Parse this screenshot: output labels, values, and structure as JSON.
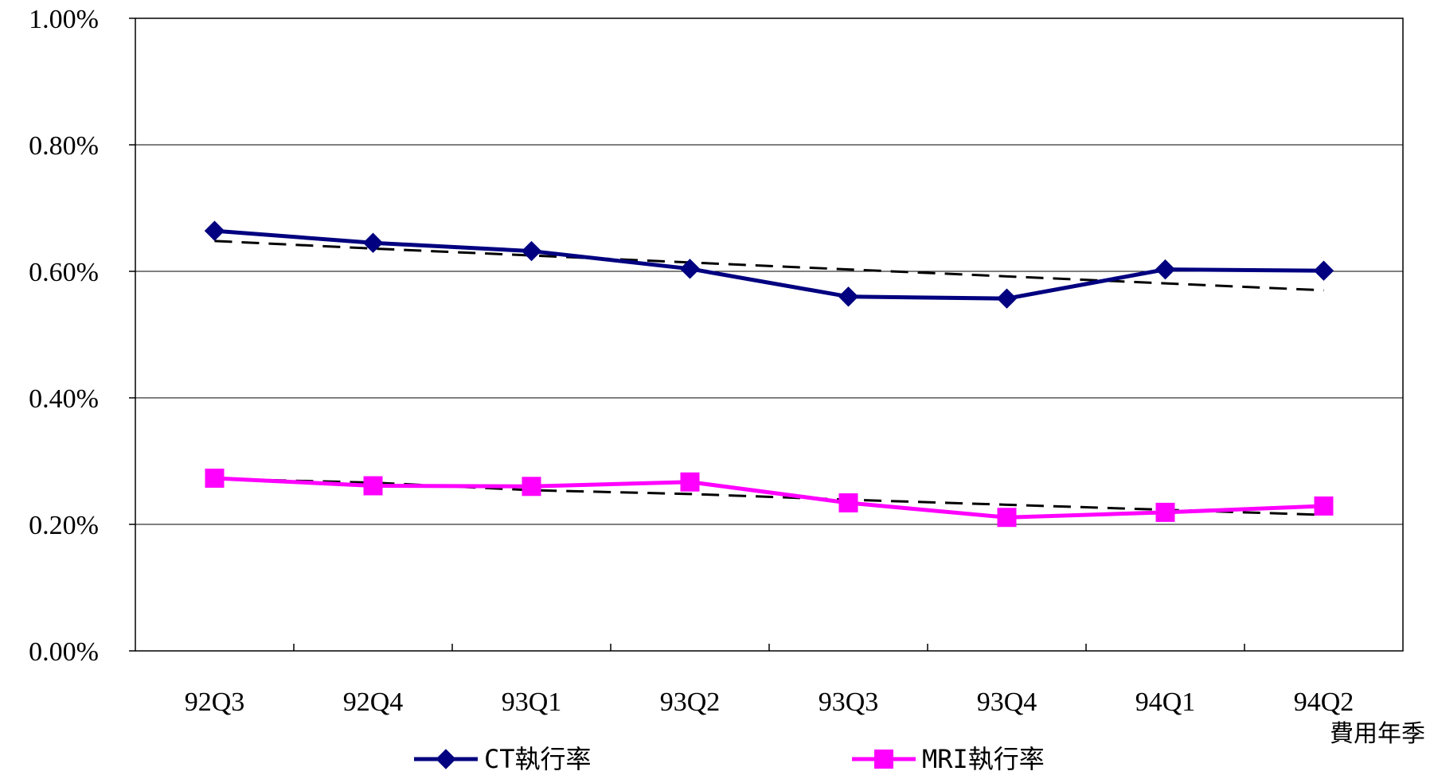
{
  "chart_data": {
    "type": "line",
    "categories": [
      "92Q3",
      "92Q4",
      "93Q1",
      "93Q2",
      "93Q3",
      "93Q4",
      "94Q1",
      "94Q2"
    ],
    "series": [
      {
        "name": "CT執行率",
        "values": [
          0.664,
          0.645,
          0.632,
          0.604,
          0.56,
          0.557,
          0.603,
          0.601
        ],
        "color": "#000080",
        "marker": "diamond",
        "trendline": [
          0.648,
          0.636,
          0.625,
          0.614,
          0.603,
          0.592,
          0.581,
          0.57
        ]
      },
      {
        "name": "MRI執行率",
        "values": [
          0.273,
          0.261,
          0.26,
          0.267,
          0.234,
          0.211,
          0.219,
          0.229
        ],
        "color": "#ff00ff",
        "marker": "square",
        "trendline": [
          0.272,
          0.266,
          0.254,
          0.248,
          0.239,
          0.231,
          0.223,
          0.215
        ]
      }
    ],
    "ylim": [
      0,
      1.0
    ],
    "yticks": [
      "0.00%",
      "0.20%",
      "0.40%",
      "0.60%",
      "0.80%",
      "1.00%"
    ],
    "xlabel": "費用年季",
    "ylabel": "",
    "title": "",
    "grid": true,
    "legend_position": "bottom",
    "trendline_color": "#000000"
  }
}
